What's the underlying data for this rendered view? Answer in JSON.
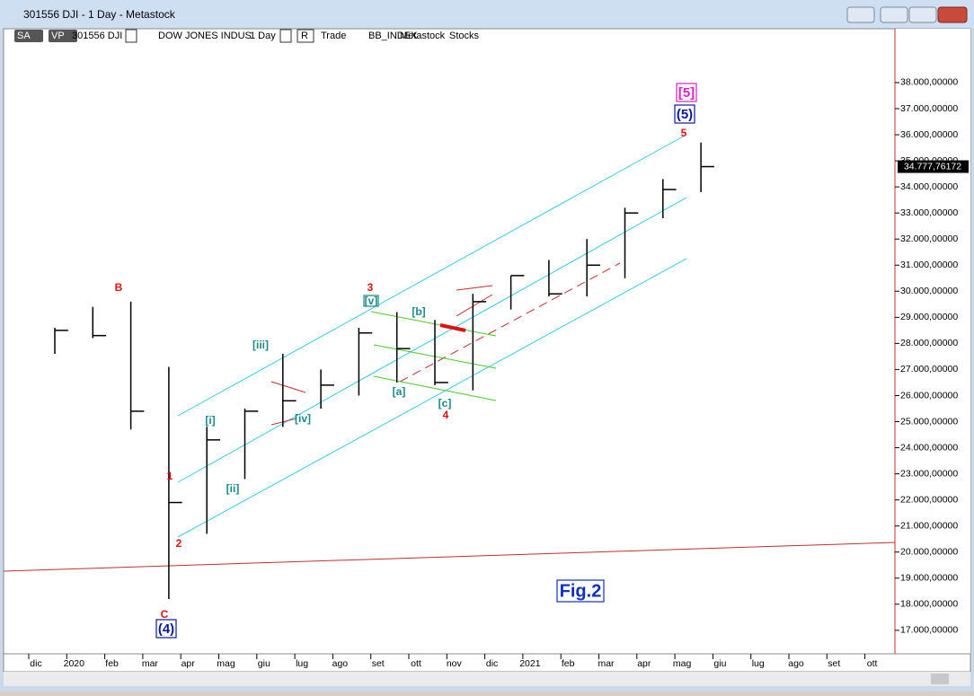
{
  "window": {
    "title": "301556 DJI - 1 Day - Metastock"
  },
  "toolbar": {
    "items": [
      "SA",
      "VP",
      "301556 DJI",
      "DOW JONES INDUS",
      "1 Day",
      "R",
      "Trade",
      "BB_INDEX",
      "Metastock",
      "Stocks"
    ]
  },
  "chart_data": {
    "type": "ohlc",
    "categories": [
      "dic",
      "2020",
      "feb",
      "mar",
      "apr",
      "mag",
      "giu",
      "lug",
      "ago",
      "set",
      "ott",
      "nov",
      "dic",
      "2021",
      "feb",
      "mar",
      "apr",
      "mag",
      "giu",
      "lug",
      "ago",
      "set",
      "ott"
    ],
    "high": [
      28600,
      29400,
      29600,
      27100,
      24800,
      25500,
      27600,
      27000,
      28600,
      29200,
      28900,
      29900,
      30600,
      31200,
      32000,
      33200,
      34300,
      35700,
      null,
      null,
      null,
      null,
      null
    ],
    "low": [
      27600,
      28200,
      24700,
      18200,
      20700,
      22800,
      24800,
      25500,
      26000,
      26500,
      26400,
      26200,
      29300,
      29800,
      29800,
      30500,
      32800,
      33800,
      null,
      null,
      null,
      null,
      null
    ],
    "close": [
      28500,
      28300,
      25400,
      21900,
      24300,
      25400,
      25800,
      26400,
      28400,
      27800,
      26500,
      29600,
      30600,
      29900,
      31000,
      33000,
      33900,
      34778,
      null,
      null,
      null,
      null,
      null
    ],
    "color": "#000000",
    "last_price": {
      "value": 34777.76172,
      "label": "34.777,76172"
    },
    "ylim": [
      16100,
      39100
    ],
    "yticks": [
      {
        "value": 17000,
        "label": "17.000,00000"
      },
      {
        "value": 18000,
        "label": "18.000,00000"
      },
      {
        "value": 19000,
        "label": "19.000,00000"
      },
      {
        "value": 20000,
        "label": "20.000,00000"
      },
      {
        "value": 21000,
        "label": "21.000,00000"
      },
      {
        "value": 22000,
        "label": "22.000,00000"
      },
      {
        "value": 23000,
        "label": "23.000,00000"
      },
      {
        "value": 24000,
        "label": "24.000,00000"
      },
      {
        "value": 25000,
        "label": "25.000,00000"
      },
      {
        "value": 26000,
        "label": "26.000,00000"
      },
      {
        "value": 27000,
        "label": "27.000,00000"
      },
      {
        "value": 28000,
        "label": "28.000,00000"
      },
      {
        "value": 29000,
        "label": "29.000,00000"
      },
      {
        "value": 30000,
        "label": "30.000,00000"
      },
      {
        "value": 31000,
        "label": "31.000,00000"
      },
      {
        "value": 32000,
        "label": "32.000,00000"
      },
      {
        "value": 33000,
        "label": "33.000,00000"
      },
      {
        "value": 34000,
        "label": "34.000,00000"
      },
      {
        "value": 35000,
        "label": "35.000,00000"
      },
      {
        "value": 36000,
        "label": "36.000,00000"
      },
      {
        "value": 37000,
        "label": "37.000,00000"
      },
      {
        "value": 38000,
        "label": "38.000,00000"
      }
    ],
    "annotations": [
      {
        "text": "B",
        "color": "#e01010"
      },
      {
        "text": "C",
        "color": "#e01010"
      },
      {
        "text": "(4)",
        "color": "#0a1a9a"
      },
      {
        "text": "1",
        "color": "#e01010"
      },
      {
        "text": "2",
        "color": "#e01010"
      },
      {
        "text": "[i]",
        "color": "#1a8a8a"
      },
      {
        "text": "[ii]",
        "color": "#1a8a8a"
      },
      {
        "text": "[iii]",
        "color": "#1a8a8a"
      },
      {
        "text": "[iv]",
        "color": "#1a8a8a"
      },
      {
        "text": "3",
        "color": "#e01010"
      },
      {
        "text": "[v]",
        "color": "#1a8a8a"
      },
      {
        "text": "[a]",
        "color": "#1a8a8a"
      },
      {
        "text": "[b]",
        "color": "#1a8a8a"
      },
      {
        "text": "[c]",
        "color": "#1a8a8a"
      },
      {
        "text": "4",
        "color": "#e01010"
      },
      {
        "text": "5",
        "color": "#e01010"
      },
      {
        "text": "(5)",
        "color": "#0a1a9a"
      },
      {
        "text": "[5]",
        "color": "#e020c0"
      },
      {
        "text": "Fig.2",
        "color": "#1030c0"
      }
    ]
  }
}
